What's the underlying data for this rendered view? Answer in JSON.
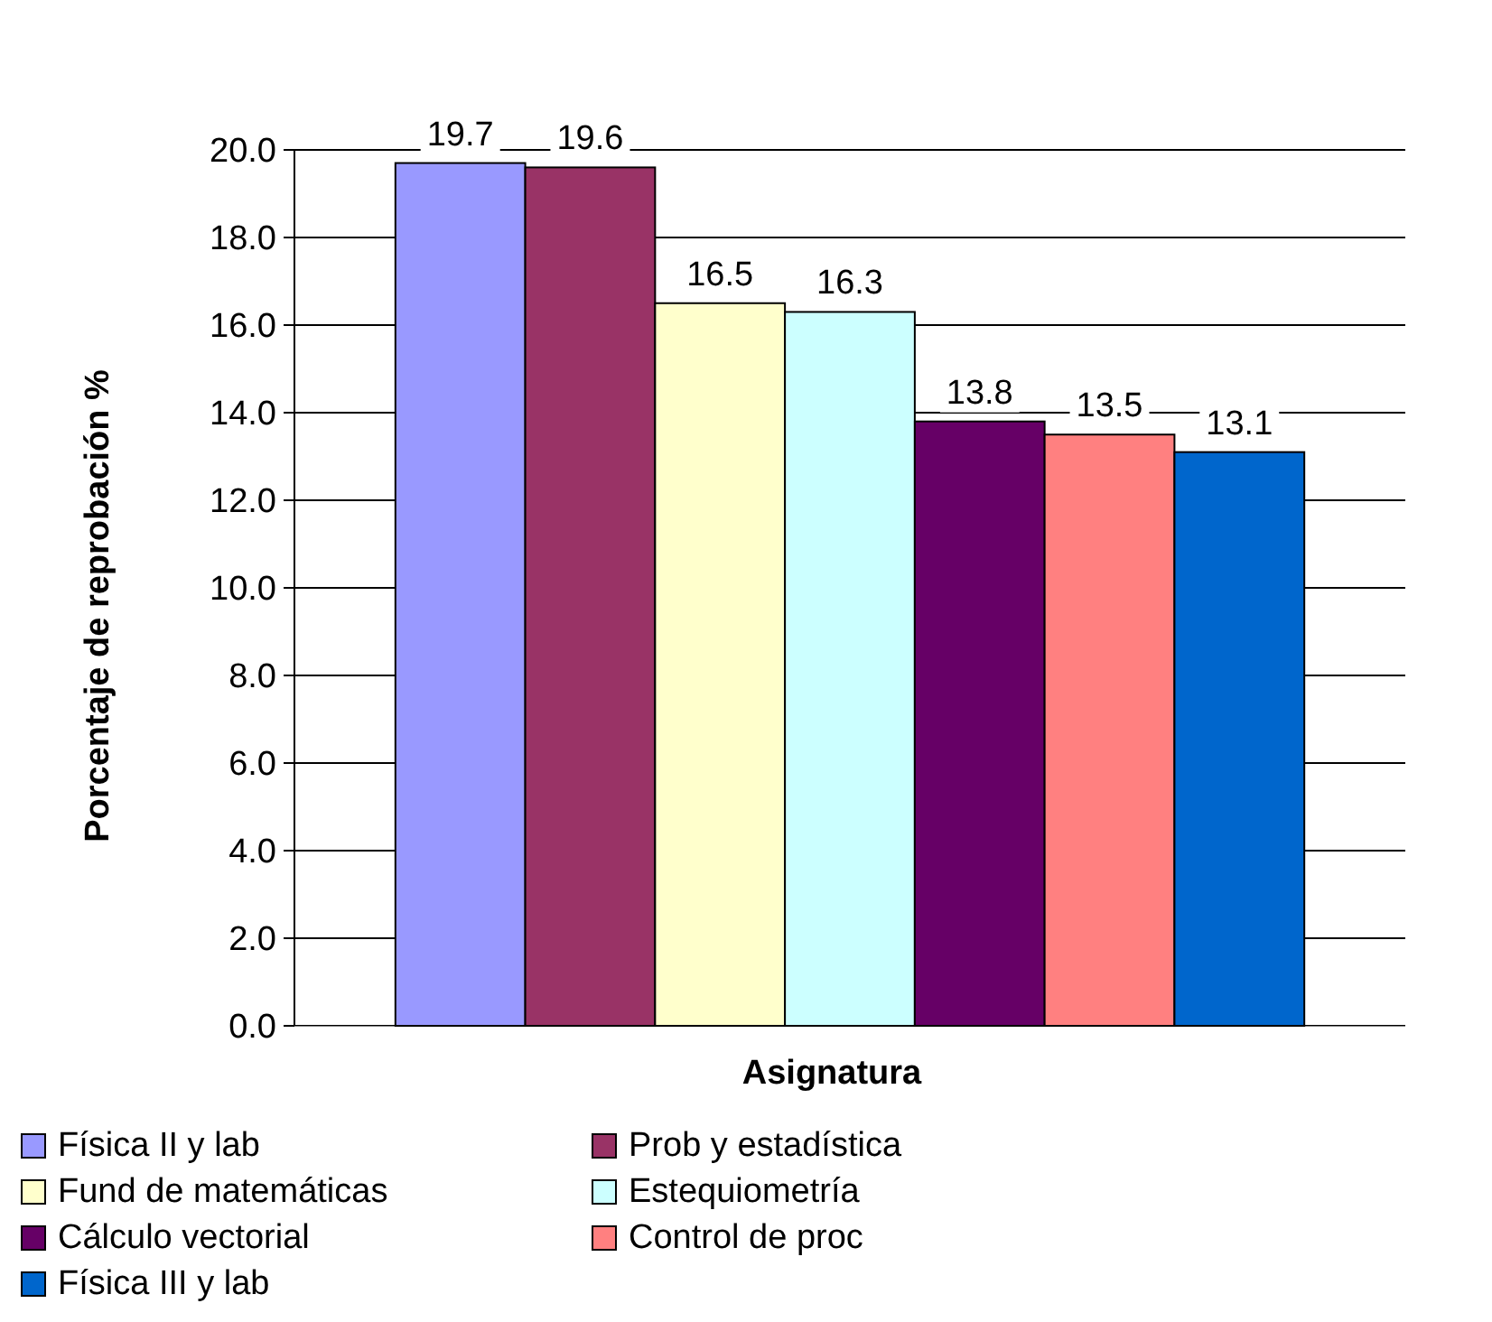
{
  "chart_data": {
    "type": "bar",
    "xlabel": "Asignatura",
    "ylabel": "Porcentaje de reprobación %",
    "categories": [
      null
    ],
    "series": [
      {
        "name": "Física II y lab",
        "color": "#9999ff",
        "values": [
          19.7
        ]
      },
      {
        "name": "Prob y estadística",
        "color": "#993366",
        "values": [
          19.6
        ]
      },
      {
        "name": "Fund de matemáticas",
        "color": "#ffffcc",
        "values": [
          16.5
        ]
      },
      {
        "name": "Estequiometría",
        "color": "#ccffff",
        "values": [
          16.3
        ]
      },
      {
        "name": "Cálculo vectorial",
        "color": "#660066",
        "values": [
          13.8
        ]
      },
      {
        "name": "Control de proc",
        "color": "#ff8080",
        "values": [
          13.5
        ]
      },
      {
        "name": "Física III y lab",
        "color": "#0066cc",
        "values": [
          13.1
        ]
      }
    ],
    "ylim": [
      0,
      20
    ],
    "yticks": [
      {
        "value": 0,
        "label": "0.0"
      },
      {
        "value": 2,
        "label": "2.0"
      },
      {
        "value": 4,
        "label": "4.0"
      },
      {
        "value": 6,
        "label": "6.0"
      },
      {
        "value": 8,
        "label": "8.0"
      },
      {
        "value": 10,
        "label": "10.0"
      },
      {
        "value": 12,
        "label": "12.0"
      },
      {
        "value": 14,
        "label": "14.0"
      },
      {
        "value": 16,
        "label": "16.0"
      },
      {
        "value": 18,
        "label": "18.0"
      },
      {
        "value": 20,
        "label": "20.0"
      }
    ],
    "grid": "y",
    "data_labels": true,
    "legend": "bottom"
  }
}
